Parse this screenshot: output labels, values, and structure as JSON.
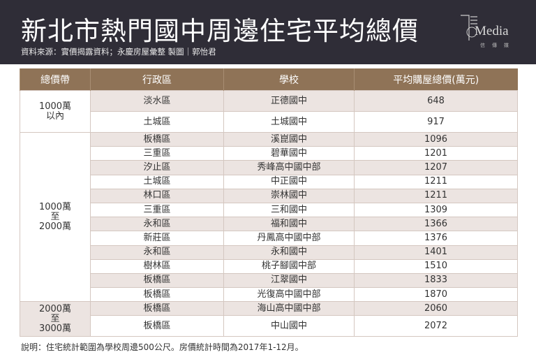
{
  "header": {
    "title": "新北市熱門國中周邊住宅平均總價",
    "source": "資料來源：實價揭露資料；永慶房屋彙整 製圖｜郭怡君",
    "logo_text": "Media",
    "logo_sub": "信傳媒"
  },
  "table": {
    "columns": [
      "總價帶",
      "行政區",
      "學校",
      "平均購屋總價(萬元)"
    ],
    "groups": [
      {
        "band": "1000萬\n以內",
        "rows": [
          [
            "淡水區",
            "正德國中",
            "648"
          ],
          [
            "土城區",
            "土城國中",
            "917"
          ]
        ]
      },
      {
        "band": "1000萬\n至\n2000萬",
        "rows": [
          [
            "板橋區",
            "溪崑國中",
            "1096"
          ],
          [
            "三重區",
            "碧華國中",
            "1201"
          ],
          [
            "汐止區",
            "秀峰高中國中部",
            "1207"
          ],
          [
            "土城區",
            "中正國中",
            "1211"
          ],
          [
            "林口區",
            "崇林國中",
            "1211"
          ],
          [
            "三重區",
            "三和國中",
            "1309"
          ],
          [
            "永和區",
            "福和國中",
            "1366"
          ],
          [
            "新莊區",
            "丹鳳高中國中部",
            "1376"
          ],
          [
            "永和區",
            "永和國中",
            "1401"
          ],
          [
            "樹林區",
            "桃子腳國中部",
            "1510"
          ],
          [
            "板橋區",
            "江翠國中",
            "1833"
          ],
          [
            "板橋區",
            "光復高中國中部",
            "1870"
          ]
        ]
      },
      {
        "band": "2000萬\n至\n3000萬",
        "rows": [
          [
            "板橋區",
            "海山高中國中部",
            "2060"
          ],
          [
            "板橋區",
            "中山國中",
            "2072"
          ]
        ]
      }
    ]
  },
  "note": "說明：住宅統計範圍為學校周邊500公尺。房價統計時間為2017年1-12月。",
  "colors": {
    "header_bg": "#2f2d37",
    "table_header": "#8f7357",
    "row_shade": "#ece4e1"
  }
}
